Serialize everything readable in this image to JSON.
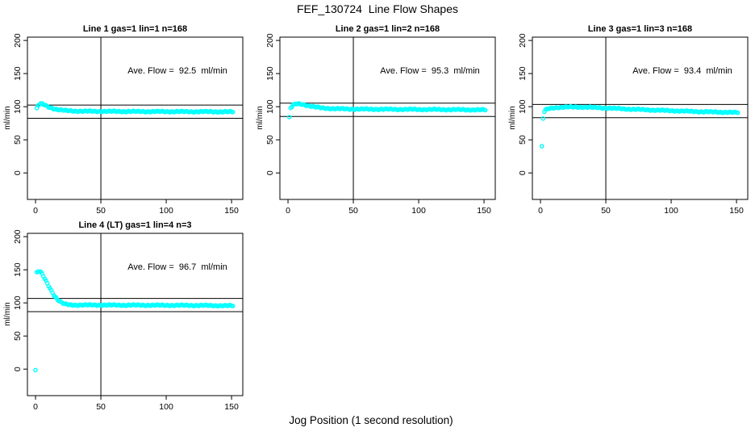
{
  "page": {
    "main_title": "FEF_130724  Line Flow Shapes",
    "x_axis_label": "Jog Position (1 second resolution)"
  },
  "chart_data": [
    {
      "type": "scatter",
      "title": "Line 1 gas=1 lin=1 n=168",
      "annotation": "Ave. Flow =  92.5  ml/min",
      "ave_flow": 92.5,
      "n": 168,
      "ylabel": "ml/min",
      "marker_color": "#00FFFF",
      "line_color": "#000000",
      "xlim": [
        -6.2,
        158.6
      ],
      "ylim": [
        -40,
        205
      ],
      "x_ticks": [
        0,
        50,
        100,
        150
      ],
      "y_ticks": [
        0,
        50,
        100,
        150,
        200
      ],
      "vline_x": 50,
      "hlines": [
        102.5,
        82.5
      ],
      "series": {
        "x_start": 1,
        "x_end": 151,
        "wobble": [
          [
            0.7,
            1.7
          ],
          [
            0.4,
            0.35
          ]
        ],
        "control_points": [
          [
            1,
            97
          ],
          [
            2,
            101.5
          ],
          [
            3,
            103.6
          ],
          [
            4,
            104.2
          ],
          [
            5,
            104
          ],
          [
            7,
            102.5
          ],
          [
            10,
            99.6
          ],
          [
            14,
            97
          ],
          [
            18,
            95.3
          ],
          [
            24,
            94
          ],
          [
            32,
            93.3
          ],
          [
            45,
            93
          ],
          [
            70,
            92.8
          ],
          [
            100,
            92.6
          ],
          [
            130,
            92.5
          ],
          [
            151,
            92.2
          ]
        ]
      }
    },
    {
      "type": "scatter",
      "title": "Line 2 gas=1 lin=2 n=168",
      "annotation": "Ave. Flow =  95.3  ml/min",
      "ave_flow": 95.3,
      "n": 168,
      "ylabel": "ml/min",
      "marker_color": "#00FFFF",
      "line_color": "#000000",
      "xlim": [
        -6.2,
        158.6
      ],
      "ylim": [
        -40,
        205
      ],
      "x_ticks": [
        0,
        50,
        100,
        150
      ],
      "y_ticks": [
        0,
        50,
        100,
        150,
        200
      ],
      "vline_x": 50,
      "hlines": [
        105.3,
        85.3
      ],
      "series": {
        "x_start": 1,
        "x_end": 151,
        "wobble": [
          [
            0.7,
            1.7
          ],
          [
            0.4,
            0.35
          ]
        ],
        "control_points": [
          [
            1,
            83.5
          ],
          [
            2,
            98
          ],
          [
            3,
            100
          ],
          [
            4,
            102.5
          ],
          [
            6,
            104
          ],
          [
            9,
            104.4
          ],
          [
            12,
            103.2
          ],
          [
            16,
            101.3
          ],
          [
            21,
            99.4
          ],
          [
            27,
            98
          ],
          [
            35,
            97
          ],
          [
            50,
            96.4
          ],
          [
            75,
            96.1
          ],
          [
            110,
            95.8
          ],
          [
            151,
            95.2
          ]
        ]
      }
    },
    {
      "type": "scatter",
      "title": "Line 3 gas=1 lin=3 n=168",
      "annotation": "Ave. Flow =  93.4  ml/min",
      "ave_flow": 93.4,
      "n": 168,
      "ylabel": "ml/min",
      "marker_color": "#00FFFF",
      "line_color": "#000000",
      "xlim": [
        -6.2,
        158.6
      ],
      "ylim": [
        -40,
        205
      ],
      "x_ticks": [
        0,
        50,
        100,
        150
      ],
      "y_ticks": [
        0,
        50,
        100,
        150,
        200
      ],
      "vline_x": 50,
      "hlines": [
        103.4,
        83.4
      ],
      "series": {
        "x_start": 1,
        "x_end": 151,
        "wobble": [
          [
            0.7,
            1.7
          ],
          [
            0.4,
            0.35
          ]
        ],
        "control_points": [
          [
            1,
            39.5
          ],
          [
            2,
            82
          ],
          [
            3,
            92.5
          ],
          [
            4,
            95
          ],
          [
            6,
            96.8
          ],
          [
            9,
            98
          ],
          [
            14,
            99
          ],
          [
            22,
            99.5
          ],
          [
            35,
            99.3
          ],
          [
            50,
            98
          ],
          [
            65,
            96.6
          ],
          [
            85,
            95
          ],
          [
            105,
            93.6
          ],
          [
            125,
            92.3
          ],
          [
            151,
            91.2
          ]
        ]
      }
    },
    {
      "type": "scatter",
      "title": "Line 4 (LT) gas=1 lin=4 n=3",
      "annotation": "Ave. Flow =  96.7  ml/min",
      "ave_flow": 96.7,
      "n": 3,
      "ylabel": "ml/min",
      "marker_color": "#00FFFF",
      "line_color": "#000000",
      "xlim": [
        -6.2,
        158.6
      ],
      "ylim": [
        -40,
        205
      ],
      "x_ticks": [
        0,
        50,
        100,
        150
      ],
      "y_ticks": [
        0,
        50,
        100,
        150,
        200
      ],
      "vline_x": 50,
      "hlines": [
        106.7,
        86.7
      ],
      "series": {
        "x_start": 0,
        "x_end": 151,
        "wobble": [
          [
            0.7,
            1.7
          ],
          [
            0.4,
            0.35
          ]
        ],
        "control_points": [
          [
            0,
            -1.5
          ],
          [
            1,
            145.5
          ],
          [
            2,
            147.2
          ],
          [
            3,
            147.5
          ],
          [
            4,
            146.3
          ],
          [
            5,
            143.5
          ],
          [
            6,
            140
          ],
          [
            7,
            136.5
          ],
          [
            8,
            133
          ],
          [
            9,
            129.5
          ],
          [
            10,
            126
          ],
          [
            11,
            122.5
          ],
          [
            12,
            119
          ],
          [
            13,
            115.5
          ],
          [
            14,
            112.3
          ],
          [
            15,
            109.5
          ],
          [
            16,
            107
          ],
          [
            17,
            105
          ],
          [
            18,
            103.2
          ],
          [
            19,
            101.7
          ],
          [
            20,
            100.4
          ],
          [
            21,
            99.3
          ],
          [
            22,
            98.5
          ],
          [
            24,
            97.6
          ],
          [
            26,
            97.1
          ],
          [
            28,
            96.9
          ],
          [
            32,
            96.8
          ],
          [
            40,
            96.8
          ],
          [
            60,
            96.7
          ],
          [
            90,
            96.5
          ],
          [
            120,
            96.3
          ],
          [
            151,
            95.7
          ]
        ]
      }
    }
  ]
}
